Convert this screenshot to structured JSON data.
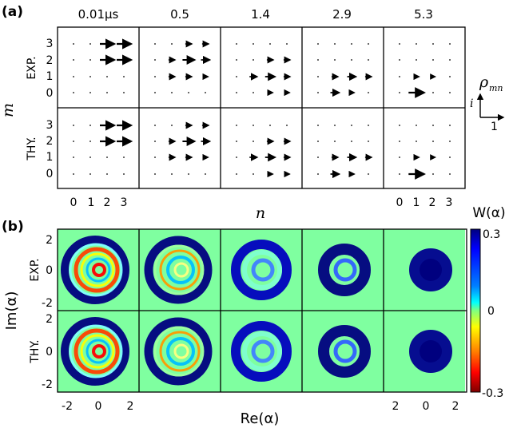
{
  "panel_a": {
    "label": "(a)",
    "times": [
      "0.01µs",
      "0.5",
      "1.4",
      "2.9",
      "5.3"
    ],
    "rows": [
      "EXP.",
      "THY."
    ],
    "m_axis_label": "m",
    "n_axis_label": "n",
    "m_ticks": [
      "3",
      "2",
      "1",
      "0"
    ],
    "n_ticks": [
      "0",
      "1",
      "2",
      "3"
    ],
    "inset": {
      "rho": "ρ",
      "sub": "mn",
      "imag": "i",
      "real": "1"
    }
  },
  "panel_b": {
    "label": "(b)",
    "rows": [
      "EXP.",
      "THY."
    ],
    "y_axis_label": "Im(α)",
    "x_axis_label": "Re(α)",
    "y_ticks": [
      "2",
      "0",
      "-2"
    ],
    "x_ticks_left": [
      "-2",
      "0",
      "2"
    ],
    "x_ticks_right": [
      "2",
      "0",
      "2"
    ],
    "colorbar": {
      "title": "W(α)",
      "max": "0.3",
      "mid": "0",
      "min": "-0.3",
      "colors": [
        "#00007f",
        "#0000ff",
        "#0080ff",
        "#00ffff",
        "#80ff80",
        "#ffff00",
        "#ff8000",
        "#ff0000",
        "#7f0000"
      ]
    }
  }
}
